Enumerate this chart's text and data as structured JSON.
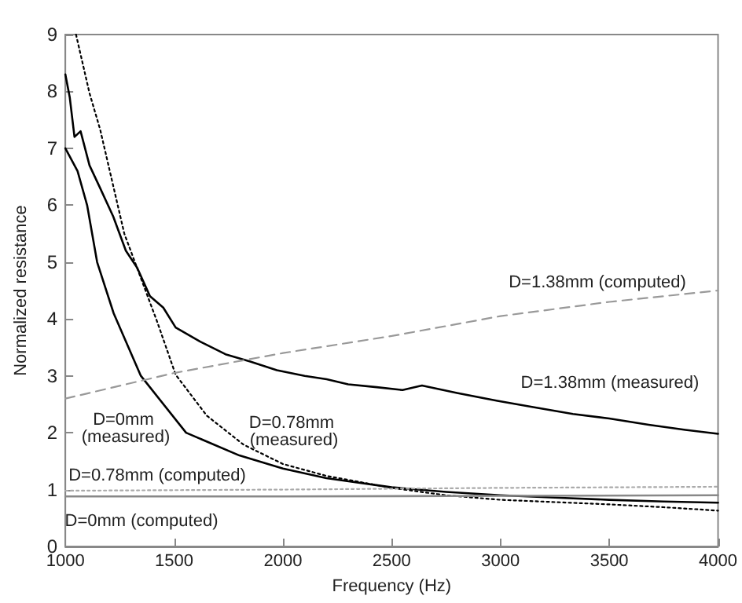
{
  "chart_data": {
    "type": "line",
    "xlabel": "Frequency (Hz)",
    "ylabel": "Normalized resistance",
    "xlim": [
      1000,
      4000
    ],
    "xticks": [
      1000,
      1500,
      2000,
      2500,
      3000,
      3500,
      4000
    ],
    "ylim": [
      0,
      9
    ],
    "yticks": [
      0,
      1,
      2,
      3,
      4,
      5,
      6,
      7,
      8,
      9
    ],
    "grid": false,
    "marker": "none",
    "series": [
      {
        "name": "D=0mm (measured)",
        "color": "#000000",
        "line_style": "solid",
        "x": [
          1000,
          1056,
          1100,
          1146,
          1222,
          1347,
          1555,
          1800,
          2000,
          2200,
          2500,
          2750,
          3000,
          3250,
          3500,
          3750,
          4000
        ],
        "values": [
          7.0,
          6.6,
          6.0,
          5.0,
          4.1,
          3.0,
          2.0,
          1.6,
          1.37,
          1.2,
          1.04,
          0.96,
          0.9,
          0.86,
          0.82,
          0.79,
          0.77
        ]
      },
      {
        "name": "D=0.78mm (measured)",
        "color": "#000000",
        "line_style": "dotted",
        "x": [
          1049,
          1111,
          1160,
          1271,
          1424,
          1507,
          1650,
          1819,
          2000,
          2201,
          2500,
          2750,
          3000,
          3250,
          3500,
          3750,
          4000
        ],
        "values": [
          9.0,
          7.97,
          7.33,
          5.5,
          3.93,
          3.02,
          2.3,
          1.79,
          1.45,
          1.24,
          1.03,
          0.9,
          0.82,
          0.78,
          0.74,
          0.69,
          0.63
        ]
      },
      {
        "name": "D=1.38mm (measured)",
        "color": "#000000",
        "line_style": "solid",
        "x": [
          1000,
          1020,
          1042,
          1070,
          1111,
          1160,
          1220,
          1278,
          1330,
          1389,
          1450,
          1507,
          1620,
          1736,
          1850,
          1972,
          2100,
          2201,
          2300,
          2431,
          2550,
          2639,
          2800,
          2986,
          3150,
          3333,
          3500,
          3681,
          3850,
          4000
        ],
        "values": [
          8.3,
          7.9,
          7.2,
          7.3,
          6.7,
          6.3,
          5.8,
          5.2,
          4.9,
          4.4,
          4.2,
          3.85,
          3.6,
          3.38,
          3.25,
          3.1,
          3.0,
          2.94,
          2.85,
          2.8,
          2.75,
          2.83,
          2.7,
          2.56,
          2.45,
          2.33,
          2.25,
          2.14,
          2.05,
          1.98
        ]
      },
      {
        "name": "D=1.38mm (computed)",
        "color": "#999999",
        "line_style": "dashed",
        "x": [
          1000,
          1500,
          2000,
          2500,
          3000,
          3500,
          4000
        ],
        "values": [
          2.6,
          3.05,
          3.4,
          3.7,
          4.05,
          4.3,
          4.5
        ]
      },
      {
        "name": "D=0.78mm (computed)",
        "color": "#aaaaaa",
        "line_style": "dotted",
        "x": [
          1000,
          2000,
          3000,
          4000
        ],
        "values": [
          0.98,
          1.0,
          1.03,
          1.05
        ]
      },
      {
        "name": "D=0mm (computed)",
        "color": "#888888",
        "line_style": "solid",
        "x": [
          1000,
          2000,
          3000,
          4000
        ],
        "values": [
          0.88,
          0.88,
          0.89,
          0.9
        ]
      }
    ]
  }
}
